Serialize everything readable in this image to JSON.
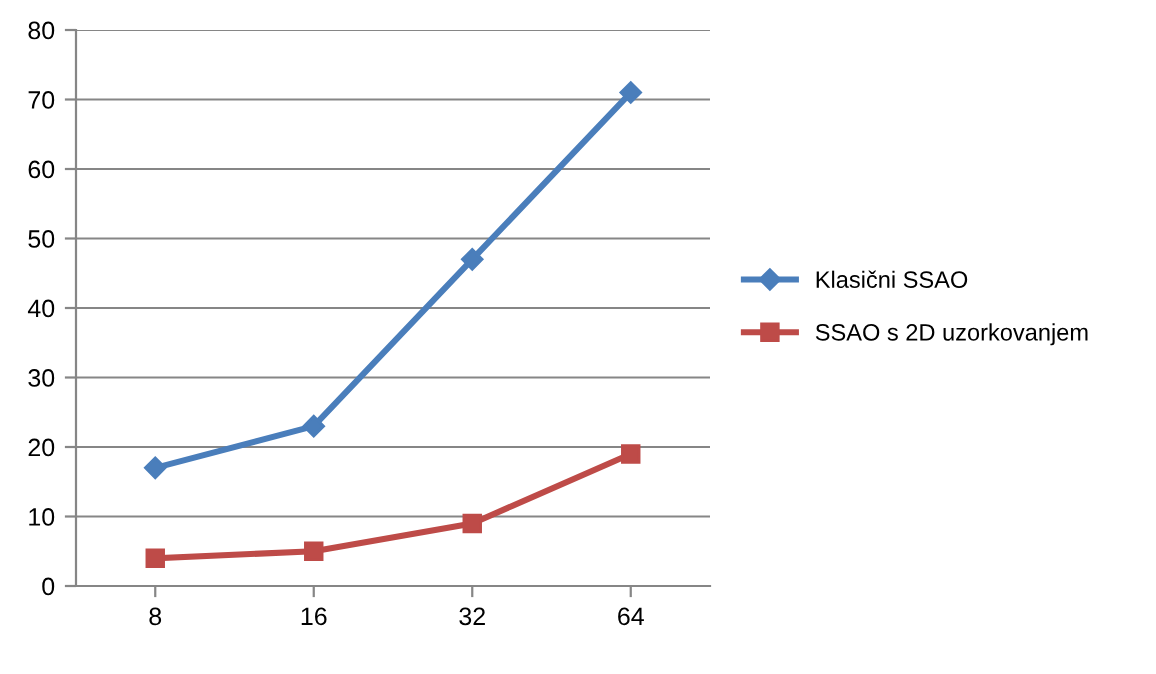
{
  "chart_data": {
    "type": "line",
    "categories": [
      "8",
      "16",
      "32",
      "64"
    ],
    "series": [
      {
        "name": "Klasični SSAO",
        "color": "#4a7ebb",
        "marker": "diamond",
        "values": [
          17,
          23,
          47,
          71
        ]
      },
      {
        "name": "SSAO s 2D uzorkovanjem",
        "color": "#be4b48",
        "marker": "square",
        "values": [
          4,
          5,
          9,
          19
        ]
      }
    ],
    "ylim": [
      0,
      80
    ],
    "yticks": [
      0,
      10,
      20,
      30,
      40,
      50,
      60,
      70,
      80
    ],
    "grid": "y",
    "legend": "right",
    "line_style": "solid"
  }
}
